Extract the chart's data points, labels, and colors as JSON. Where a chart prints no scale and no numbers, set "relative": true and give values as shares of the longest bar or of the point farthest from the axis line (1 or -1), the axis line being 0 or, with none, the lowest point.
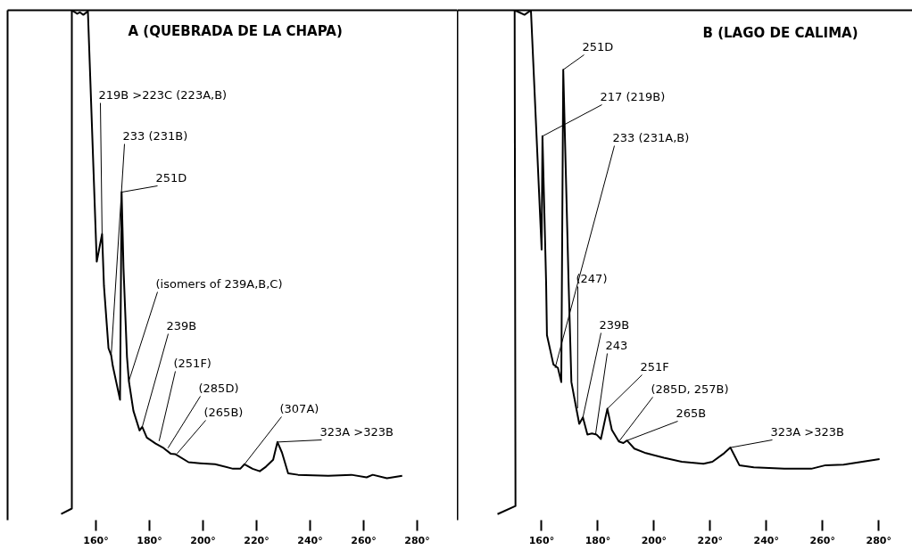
{
  "chart_data": [
    {
      "type": "line",
      "title": "A (QUEBRADA DE LA CHAPA)",
      "relative": true,
      "grid": false,
      "tick_labels": "x",
      "xlim": [
        127,
        295
      ],
      "xticks": [
        {
          "value": 160,
          "label": "160°"
        },
        {
          "value": 180,
          "label": "180°"
        },
        {
          "value": 200,
          "label": "200°"
        },
        {
          "value": 220,
          "label": "220°"
        },
        {
          "value": 240,
          "label": "240°"
        },
        {
          "value": 260,
          "label": "260°"
        },
        {
          "value": 280,
          "label": "280°"
        }
      ],
      "series": [
        {
          "color": "#000000",
          "x": [
            147.0,
            151.0,
            151.0,
            153.0,
            154.0,
            155.3,
            157.0,
            160.3,
            162.3,
            163.0,
            164.7,
            165.7,
            166.3,
            169.0,
            169.6,
            170.3,
            171.6,
            172.3,
            174.0,
            176.3,
            177.3,
            179.0,
            182.3,
            185.3,
            187.9,
            189.6,
            194.6,
            198.9,
            204.5,
            211.2,
            213.9,
            215.5,
            218.5,
            221.2,
            223.5,
            226.2,
            227.8,
            229.5,
            231.8,
            235.5,
            246.8,
            255.4,
            261.1,
            263.4,
            268.7,
            274.4
          ],
          "values": [
            0,
            0.011,
            1.0,
            0.993,
            0.996,
            0.991,
            0.998,
            0.501,
            0.556,
            0.453,
            0.329,
            0.315,
            0.294,
            0.227,
            0.639,
            0.488,
            0.312,
            0.264,
            0.205,
            0.166,
            0.173,
            0.152,
            0.14,
            0.131,
            0.12,
            0.119,
            0.103,
            0.101,
            0.099,
            0.09,
            0.09,
            0.099,
            0.09,
            0.085,
            0.094,
            0.108,
            0.143,
            0.122,
            0.081,
            0.078,
            0.076,
            0.078,
            0.073,
            0.078,
            0.071,
            0.076
          ]
        }
      ],
      "annotations": [
        {
          "text": "219B >223C (223A,B)",
          "x": 162.3,
          "y": 0.556
        },
        {
          "text": "233 (231B)",
          "x": 165.7,
          "y": 0.315
        },
        {
          "text": "251D",
          "x": 169.6,
          "y": 0.639
        },
        {
          "text": "(isomers of 239A,B,C)",
          "x": 172.3,
          "y": 0.264
        },
        {
          "text": "239B",
          "x": 177.3,
          "y": 0.173
        },
        {
          "text": "(251F)",
          "x": 183.6,
          "y": 0.145
        },
        {
          "text": "(285D)",
          "x": 186.9,
          "y": 0.131
        },
        {
          "text": "(265B)",
          "x": 190.3,
          "y": 0.12
        },
        {
          "text": "(307A)",
          "x": 215.5,
          "y": 0.099
        },
        {
          "text": "323A >323B",
          "x": 227.8,
          "y": 0.143
        }
      ]
    },
    {
      "type": "line",
      "title": "B (LAGO DE CALIMA)",
      "relative": true,
      "grid": false,
      "tick_labels": "x",
      "xlim": [
        130,
        292
      ],
      "xticks": [
        {
          "value": 160,
          "label": "160°"
        },
        {
          "value": 180,
          "label": "180°"
        },
        {
          "value": 200,
          "label": "200°"
        },
        {
          "value": 220,
          "label": "220°"
        },
        {
          "value": 240,
          "label": "240°"
        },
        {
          "value": 260,
          "label": "260°"
        },
        {
          "value": 280,
          "label": "280°"
        }
      ],
      "series": [
        {
          "color": "#000000",
          "x": [
            144.3,
            150.7,
            150.4,
            152.0,
            153.9,
            156.2,
            160.0,
            160.3,
            161.6,
            161.9,
            164.2,
            165.8,
            167.0,
            167.7,
            169.6,
            170.6,
            172.2,
            173.4,
            174.7,
            176.3,
            177.9,
            179.5,
            181.1,
            183.4,
            185.0,
            187.5,
            189.1,
            190.4,
            193.0,
            197.1,
            203.5,
            209.9,
            217.6,
            220.8,
            225.0,
            227.2,
            230.4,
            235.5,
            246.4,
            256.0,
            261.1,
            267.5,
            280.3
          ],
          "values": [
            0,
            0.016,
            1.0,
            0.996,
            0.991,
            1.0,
            0.525,
            0.75,
            0.46,
            0.355,
            0.297,
            0.29,
            0.262,
            0.882,
            0.46,
            0.262,
            0.214,
            0.179,
            0.192,
            0.158,
            0.16,
            0.158,
            0.149,
            0.209,
            0.167,
            0.144,
            0.141,
            0.146,
            0.13,
            0.121,
            0.112,
            0.104,
            0.1,
            0.104,
            0.121,
            0.132,
            0.097,
            0.093,
            0.09,
            0.09,
            0.097,
            0.098,
            0.109
          ]
        }
      ],
      "annotations": [
        {
          "text": "251D",
          "x": 167.7,
          "y": 0.882
        },
        {
          "text": "217 (219B)",
          "x": 160.3,
          "y": 0.75
        },
        {
          "text": "233 (231A,B)",
          "x": 164.8,
          "y": 0.29
        },
        {
          "text": "(247)",
          "x": 172.8,
          "y": 0.21
        },
        {
          "text": "239B",
          "x": 174.7,
          "y": 0.192
        },
        {
          "text": "243",
          "x": 179.2,
          "y": 0.158
        },
        {
          "text": "251F",
          "x": 183.4,
          "y": 0.209
        },
        {
          "text": "(285D, 257B)",
          "x": 187.5,
          "y": 0.144
        },
        {
          "text": "265B",
          "x": 190.4,
          "y": 0.146
        },
        {
          "text": "323A >323B",
          "x": 227.2,
          "y": 0.132
        }
      ]
    }
  ]
}
